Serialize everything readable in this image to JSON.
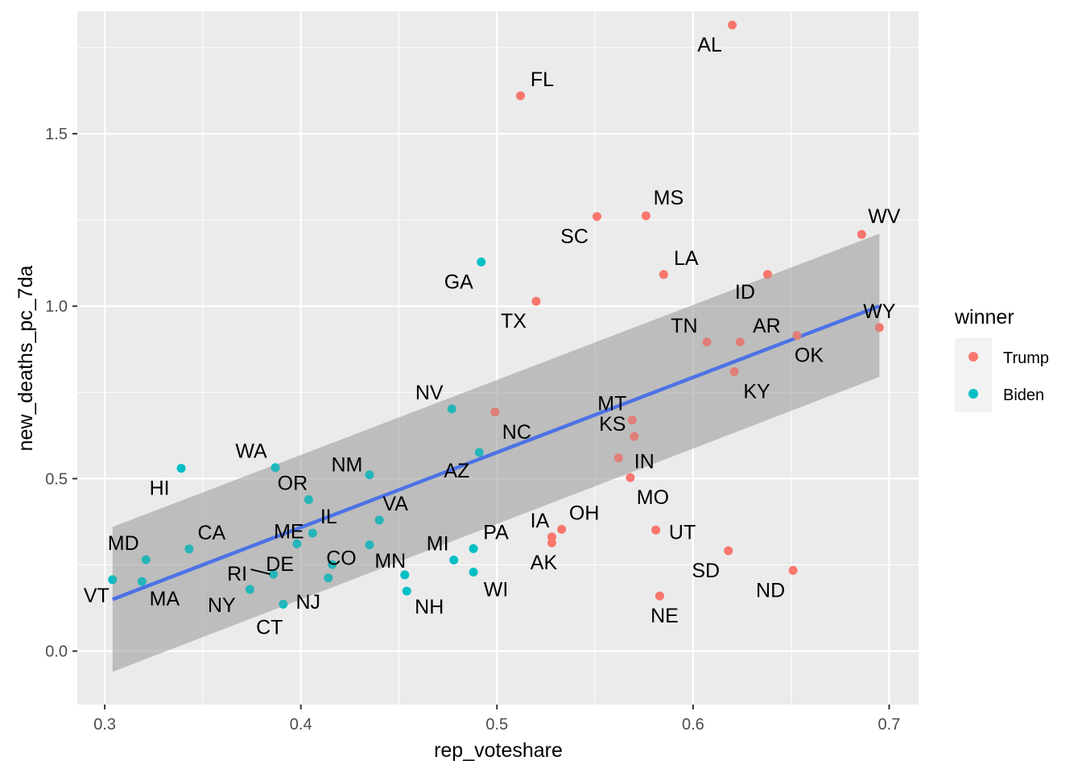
{
  "chart_data": {
    "type": "scatter",
    "xlabel": "rep_voteshare",
    "ylabel": "new_deaths_pc_7da",
    "xlim": [
      0.286,
      0.715
    ],
    "ylim": [
      -0.155,
      1.855
    ],
    "x_ticks": [
      0.3,
      0.4,
      0.5,
      0.6,
      0.7
    ],
    "x_tick_labels": [
      "0.3",
      "0.4",
      "0.5",
      "0.6",
      "0.7"
    ],
    "y_ticks": [
      0.0,
      0.5,
      1.0,
      1.5
    ],
    "y_tick_labels": [
      "0.0",
      "0.5",
      "1.0",
      "1.5"
    ],
    "grid": true,
    "legend": {
      "title": "winner",
      "placement": "right",
      "entries": [
        {
          "label": "Trump",
          "color": "#F8766D"
        },
        {
          "label": "Biden",
          "color": "#00BFC4"
        }
      ]
    },
    "trend_line": {
      "method": "linear fit with confidence band",
      "color": "#3366FF",
      "band_color": "#999999",
      "x": [
        0.304,
        0.695
      ],
      "y": [
        0.15,
        1.0
      ],
      "band_lower": [
        -0.06,
        0.795
      ],
      "band_upper": [
        0.36,
        1.21
      ]
    },
    "points": [
      {
        "state": "AL",
        "x": 0.62,
        "y": 1.815,
        "winner": "Trump"
      },
      {
        "state": "FL",
        "x": 0.512,
        "y": 1.61,
        "winner": "Trump"
      },
      {
        "state": "MS",
        "x": 0.576,
        "y": 1.262,
        "winner": "Trump"
      },
      {
        "state": "SC",
        "x": 0.551,
        "y": 1.26,
        "winner": "Trump"
      },
      {
        "state": "WV",
        "x": 0.686,
        "y": 1.208,
        "winner": "Trump"
      },
      {
        "state": "GA",
        "x": 0.492,
        "y": 1.128,
        "winner": "Biden"
      },
      {
        "state": "LA",
        "x": 0.585,
        "y": 1.092,
        "winner": "Trump"
      },
      {
        "state": "ID",
        "x": 0.638,
        "y": 1.092,
        "winner": "Trump"
      },
      {
        "state": "TX",
        "x": 0.52,
        "y": 1.014,
        "winner": "Trump"
      },
      {
        "state": "WY",
        "x": 0.695,
        "y": 0.938,
        "winner": "Trump"
      },
      {
        "state": "OK",
        "x": 0.653,
        "y": 0.915,
        "winner": "Trump"
      },
      {
        "state": "TN",
        "x": 0.607,
        "y": 0.896,
        "winner": "Trump"
      },
      {
        "state": "AR",
        "x": 0.624,
        "y": 0.896,
        "winner": "Trump"
      },
      {
        "state": "KY",
        "x": 0.621,
        "y": 0.81,
        "winner": "Trump"
      },
      {
        "state": "NV",
        "x": 0.477,
        "y": 0.702,
        "winner": "Biden"
      },
      {
        "state": "NC",
        "x": 0.499,
        "y": 0.693,
        "winner": "Trump"
      },
      {
        "state": "MT",
        "x": 0.569,
        "y": 0.67,
        "winner": "Trump"
      },
      {
        "state": "KS",
        "x": 0.57,
        "y": 0.622,
        "winner": "Trump"
      },
      {
        "state": "AZ",
        "x": 0.491,
        "y": 0.576,
        "winner": "Biden"
      },
      {
        "state": "IN",
        "x": 0.562,
        "y": 0.56,
        "winner": "Trump"
      },
      {
        "state": "WA",
        "x": 0.387,
        "y": 0.532,
        "winner": "Biden"
      },
      {
        "state": "HI",
        "x": 0.339,
        "y": 0.53,
        "winner": "Biden"
      },
      {
        "state": "NM",
        "x": 0.435,
        "y": 0.511,
        "winner": "Biden"
      },
      {
        "state": "MO",
        "x": 0.568,
        "y": 0.503,
        "winner": "Trump"
      },
      {
        "state": "OR",
        "x": 0.404,
        "y": 0.439,
        "winner": "Biden"
      },
      {
        "state": "VA",
        "x": 0.44,
        "y": 0.38,
        "winner": "Biden"
      },
      {
        "state": "OH",
        "x": 0.533,
        "y": 0.353,
        "winner": "Trump"
      },
      {
        "state": "UT",
        "x": 0.581,
        "y": 0.351,
        "winner": "Trump"
      },
      {
        "state": "IL",
        "x": 0.406,
        "y": 0.342,
        "winner": "Biden"
      },
      {
        "state": "IA",
        "x": 0.528,
        "y": 0.331,
        "winner": "Trump"
      },
      {
        "state": "AK",
        "x": 0.528,
        "y": 0.314,
        "winner": "Trump"
      },
      {
        "state": "ME",
        "x": 0.398,
        "y": 0.311,
        "winner": "Biden"
      },
      {
        "state": "CO",
        "x": 0.435,
        "y": 0.308,
        "winner": "Biden"
      },
      {
        "state": "CA",
        "x": 0.343,
        "y": 0.296,
        "winner": "Biden"
      },
      {
        "state": "PA",
        "x": 0.488,
        "y": 0.297,
        "winner": "Biden"
      },
      {
        "state": "SD",
        "x": 0.618,
        "y": 0.291,
        "winner": "Trump"
      },
      {
        "state": "MD",
        "x": 0.321,
        "y": 0.265,
        "winner": "Biden"
      },
      {
        "state": "MI",
        "x": 0.478,
        "y": 0.264,
        "winner": "Biden"
      },
      {
        "state": "DE",
        "x": 0.416,
        "y": 0.251,
        "winner": "Biden"
      },
      {
        "state": "ND",
        "x": 0.651,
        "y": 0.234,
        "winner": "Trump"
      },
      {
        "state": "WI",
        "x": 0.488,
        "y": 0.229,
        "winner": "Biden"
      },
      {
        "state": "RI",
        "x": 0.386,
        "y": 0.223,
        "winner": "Biden"
      },
      {
        "state": "MN",
        "x": 0.453,
        "y": 0.221,
        "winner": "Biden"
      },
      {
        "state": "NJ",
        "x": 0.414,
        "y": 0.212,
        "winner": "Biden"
      },
      {
        "state": "VT",
        "x": 0.304,
        "y": 0.207,
        "winner": "Biden"
      },
      {
        "state": "MA",
        "x": 0.319,
        "y": 0.202,
        "winner": "Biden"
      },
      {
        "state": "NY",
        "x": 0.374,
        "y": 0.179,
        "winner": "Biden"
      },
      {
        "state": "NH",
        "x": 0.454,
        "y": 0.174,
        "winner": "Biden"
      },
      {
        "state": "NE",
        "x": 0.583,
        "y": 0.16,
        "winner": "Trump"
      },
      {
        "state": "CT",
        "x": 0.391,
        "y": 0.136,
        "winner": "Biden"
      }
    ]
  }
}
